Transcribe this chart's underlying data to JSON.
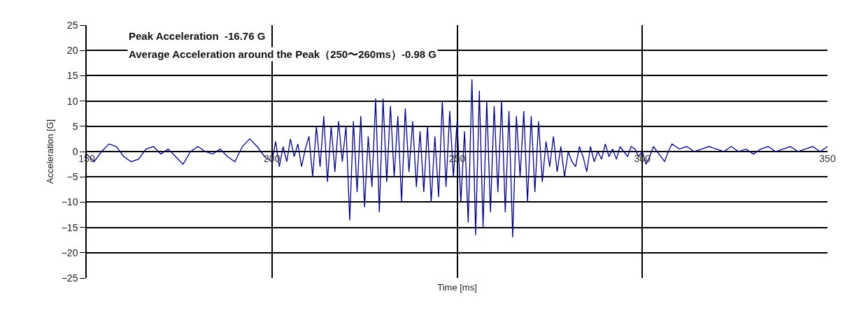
{
  "chart_data": {
    "type": "line",
    "xlabel": "Time [ms]",
    "ylabel": "Acceleration [G]",
    "annotations": [
      "Peak Acceleration  -16.76 G",
      "Average Acceleration around the Peak（250〜260ms）-0.98 G"
    ],
    "x": [
      150,
      152,
      154,
      156,
      158,
      160,
      162,
      164,
      166,
      168,
      170,
      172,
      174,
      176,
      178,
      180,
      182,
      184,
      186,
      188,
      190,
      192,
      194,
      196,
      198,
      200,
      201,
      202,
      203,
      204,
      205,
      206,
      207,
      208,
      209,
      210,
      211,
      212,
      213,
      214,
      215,
      216,
      217,
      218,
      219,
      220,
      221,
      222,
      223,
      224,
      225,
      226,
      227,
      228,
      229,
      230,
      231,
      232,
      233,
      234,
      235,
      236,
      237,
      238,
      239,
      240,
      241,
      242,
      243,
      244,
      245,
      246,
      247,
      248,
      249,
      250,
      251,
      252,
      253,
      254,
      255,
      256,
      257,
      258,
      259,
      260,
      261,
      262,
      263,
      264,
      265,
      266,
      267,
      268,
      269,
      270,
      271,
      272,
      273,
      274,
      275,
      276,
      277,
      278,
      279,
      280,
      281,
      282,
      283,
      284,
      285,
      286,
      287,
      288,
      289,
      290,
      291,
      292,
      293,
      294,
      295,
      296,
      297,
      298,
      299,
      300,
      301,
      302,
      303,
      304,
      305,
      306,
      307,
      308,
      310,
      312,
      314,
      316,
      318,
      320,
      322,
      324,
      326,
      328,
      330,
      332,
      334,
      336,
      338,
      340,
      342,
      344,
      346,
      348,
      350
    ],
    "series": [
      {
        "color": "#000080",
        "values": [
          -0.5,
          -2,
          0,
          1.5,
          1,
          -1,
          -2,
          -1.5,
          0.5,
          1,
          -0.5,
          0.5,
          -1,
          -2.5,
          0,
          1,
          0,
          -0.5,
          0.5,
          -1,
          -2,
          1,
          2.5,
          1,
          -1,
          -2,
          2,
          -3,
          1,
          -2,
          2.5,
          -1,
          1.5,
          -3,
          0.5,
          3,
          -5,
          5,
          -3,
          7,
          -6,
          5,
          -4,
          6,
          -2,
          5,
          -13.6,
          6,
          -8,
          7,
          -11,
          3,
          -7,
          10.5,
          -12,
          10.5,
          -6,
          9,
          -5,
          7,
          -10,
          8.5,
          -4,
          6,
          -7,
          4,
          -8,
          5,
          -10,
          3,
          -9,
          10,
          -7,
          8,
          -5,
          6,
          -10,
          4,
          -14,
          14.3,
          -16.5,
          12,
          -15,
          10,
          -12,
          9,
          -8,
          10,
          -12,
          8,
          -17,
          7,
          -5,
          8,
          -10,
          7,
          -8,
          6,
          -6,
          2,
          -3,
          3,
          -4,
          1,
          -5,
          0,
          -2,
          -3,
          1,
          -1,
          -4,
          1,
          -2,
          0,
          -1.5,
          1.5,
          -1,
          0.5,
          -1.5,
          1,
          0,
          -1,
          1,
          0.5,
          -1,
          0,
          -2.5,
          -1,
          1,
          0,
          -1,
          -2,
          0,
          1.5,
          0.5,
          1,
          0,
          0.5,
          1,
          0.5,
          0,
          1,
          0,
          0.5,
          -0.5,
          0.5,
          1,
          0,
          0.5,
          1,
          0,
          0.5,
          1,
          0,
          1
        ]
      }
    ],
    "xlim": [
      150,
      350
    ],
    "xticks": [
      150,
      200,
      250,
      300,
      350
    ],
    "ylim": [
      -25,
      25
    ],
    "yticks": [
      -25,
      -20,
      -15,
      -10,
      -5,
      0,
      5,
      10,
      15,
      20,
      25
    ],
    "grid": true,
    "marker": "none",
    "line_style": "solid"
  }
}
